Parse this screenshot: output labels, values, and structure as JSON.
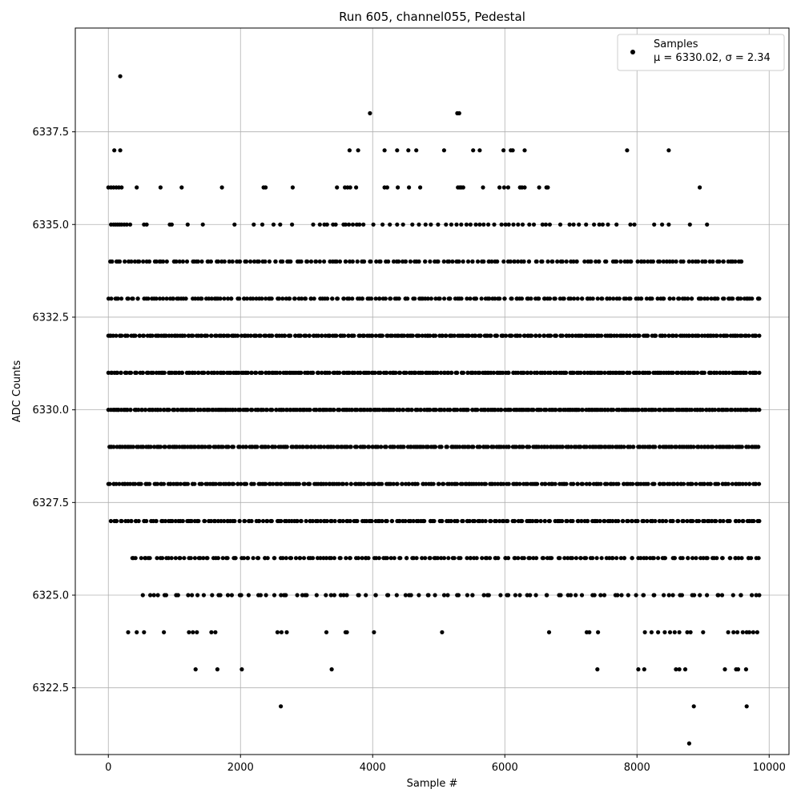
{
  "chart_data": {
    "type": "scatter",
    "title": "Run 605, channel055, Pedestal",
    "xlabel": "Sample #",
    "ylabel": "ADC Counts",
    "xlim": [
      -500,
      10300
    ],
    "ylim": [
      6320.7,
      6340.3
    ],
    "xticks": [
      0,
      2000,
      4000,
      6000,
      8000,
      10000
    ],
    "yticks": [
      6322.5,
      6325.0,
      6327.5,
      6330.0,
      6332.5,
      6335.0,
      6337.5
    ],
    "xtick_labels": [
      "0",
      "2000",
      "4000",
      "6000",
      "8000",
      "10000"
    ],
    "ytick_labels": [
      "6322.5",
      "6325.0",
      "6327.5",
      "6330.0",
      "6332.5",
      "6335.0",
      "6337.5"
    ],
    "grid": true,
    "marker_color": "#000000",
    "legend": {
      "placement": "upper right",
      "entries": [
        {
          "label": "Samples",
          "sublabel": "μ = 6330.02, σ = 2.34"
        }
      ]
    },
    "series": [
      {
        "name": "Samples",
        "bands": [
          {
            "y": 6337,
            "x": [
              90,
              180,
              3650,
              3780,
              4180,
              4370,
              4540,
              4660,
              5080,
              5520,
              5620,
              5980,
              6090,
              6120,
              6300,
              7850,
              8480
            ]
          },
          {
            "y": 6336,
            "x": [
              0,
              40,
              80,
              120,
              160,
              200,
              430,
              790,
              1110,
              1720,
              2350,
              2380,
              2790,
              3460,
              3580,
              3620,
              3660,
              3750,
              4180,
              4220,
              4380,
              4550,
              4720,
              5290,
              5320,
              5340,
              5370,
              5670,
              5920,
              5990,
              6050,
              6230,
              6260,
              6300,
              6520,
              6630,
              6650,
              8950
            ]
          },
          {
            "y": 6335,
            "x": [
              40,
              80,
              110,
              140,
              170,
              200,
              240,
              280,
              330,
              540,
              580,
              930,
              960,
              1200,
              1430,
              1910,
              2200,
              2330,
              2500,
              2600,
              2780,
              3100,
              3200,
              3270,
              3310,
              3400,
              3440,
              3560,
              3590,
              3640,
              3700,
              3760,
              3800,
              3860,
              4010,
              4150,
              4260,
              4370,
              4460,
              4600,
              4700,
              4800,
              4880,
              4990,
              5110,
              5190,
              5270,
              5340,
              5420,
              5480,
              5560,
              5620,
              5680,
              5750,
              5840,
              5950,
              6010,
              6060,
              6130,
              6200,
              6270,
              6370,
              6440,
              6570,
              6620,
              6680,
              6840,
              6980,
              7040,
              7120,
              7230,
              7350,
              7430,
              7480,
              7560,
              7690,
              7900,
              7960,
              8260,
              8380,
              8480,
              8800,
              9060
            ]
          }
        ],
        "dense_bands": [
          {
            "y": 6334,
            "x_range": [
              0,
              9580
            ],
            "count": 200,
            "extra_x": [
              9420,
              9580
            ]
          },
          {
            "y": 6333,
            "x_range": [
              0,
              9850
            ],
            "count": 230,
            "extra_x": [
              9400,
              9530,
              9660,
              9850
            ]
          },
          {
            "y": 6332,
            "x_range": [
              0,
              9850
            ],
            "count": 320
          },
          {
            "y": 6331,
            "x_range": [
              0,
              9850
            ],
            "count": 330
          },
          {
            "y": 6330,
            "x_range": [
              0,
              9850
            ],
            "count": 360
          },
          {
            "y": 6329,
            "x_range": [
              0,
              9850
            ],
            "count": 330
          },
          {
            "y": 6328,
            "x_range": [
              0,
              9850
            ],
            "count": 290
          },
          {
            "y": 6327,
            "x_range": [
              30,
              9850
            ],
            "count": 260
          },
          {
            "y": 6326,
            "x_range": [
              330,
              9850
            ],
            "count": 200
          },
          {
            "y": 6325,
            "x_range": [
              490,
              9850
            ],
            "count": 110
          }
        ],
        "sparse_bands": [
          {
            "y": 6324,
            "x": [
              300,
              430,
              540,
              840,
              1220,
              1280,
              1340,
              1560,
              1620,
              2560,
              2620,
              2700,
              3300,
              3590,
              3610,
              4020,
              5050,
              6670,
              7240,
              7280,
              7410,
              8120,
              8220,
              8320,
              8420,
              8500,
              8570,
              8640,
              8760,
              8810,
              9000,
              9380,
              9460,
              9520,
              9600,
              9660,
              9700,
              9760,
              9820
            ]
          },
          {
            "y": 6323,
            "x": [
              1320,
              1650,
              2020,
              3380,
              7400,
              8020,
              8110,
              8590,
              8640,
              8730,
              9330,
              9500,
              9530,
              9650
            ]
          },
          {
            "y": 6322,
            "x": [
              2610,
              8860,
              9660
            ]
          },
          {
            "y": 6321,
            "x": [
              8790
            ]
          },
          {
            "y": 6338,
            "x": [
              3960,
              5280,
              5310
            ]
          },
          {
            "y": 6339,
            "x": [
              180
            ]
          }
        ]
      }
    ]
  }
}
